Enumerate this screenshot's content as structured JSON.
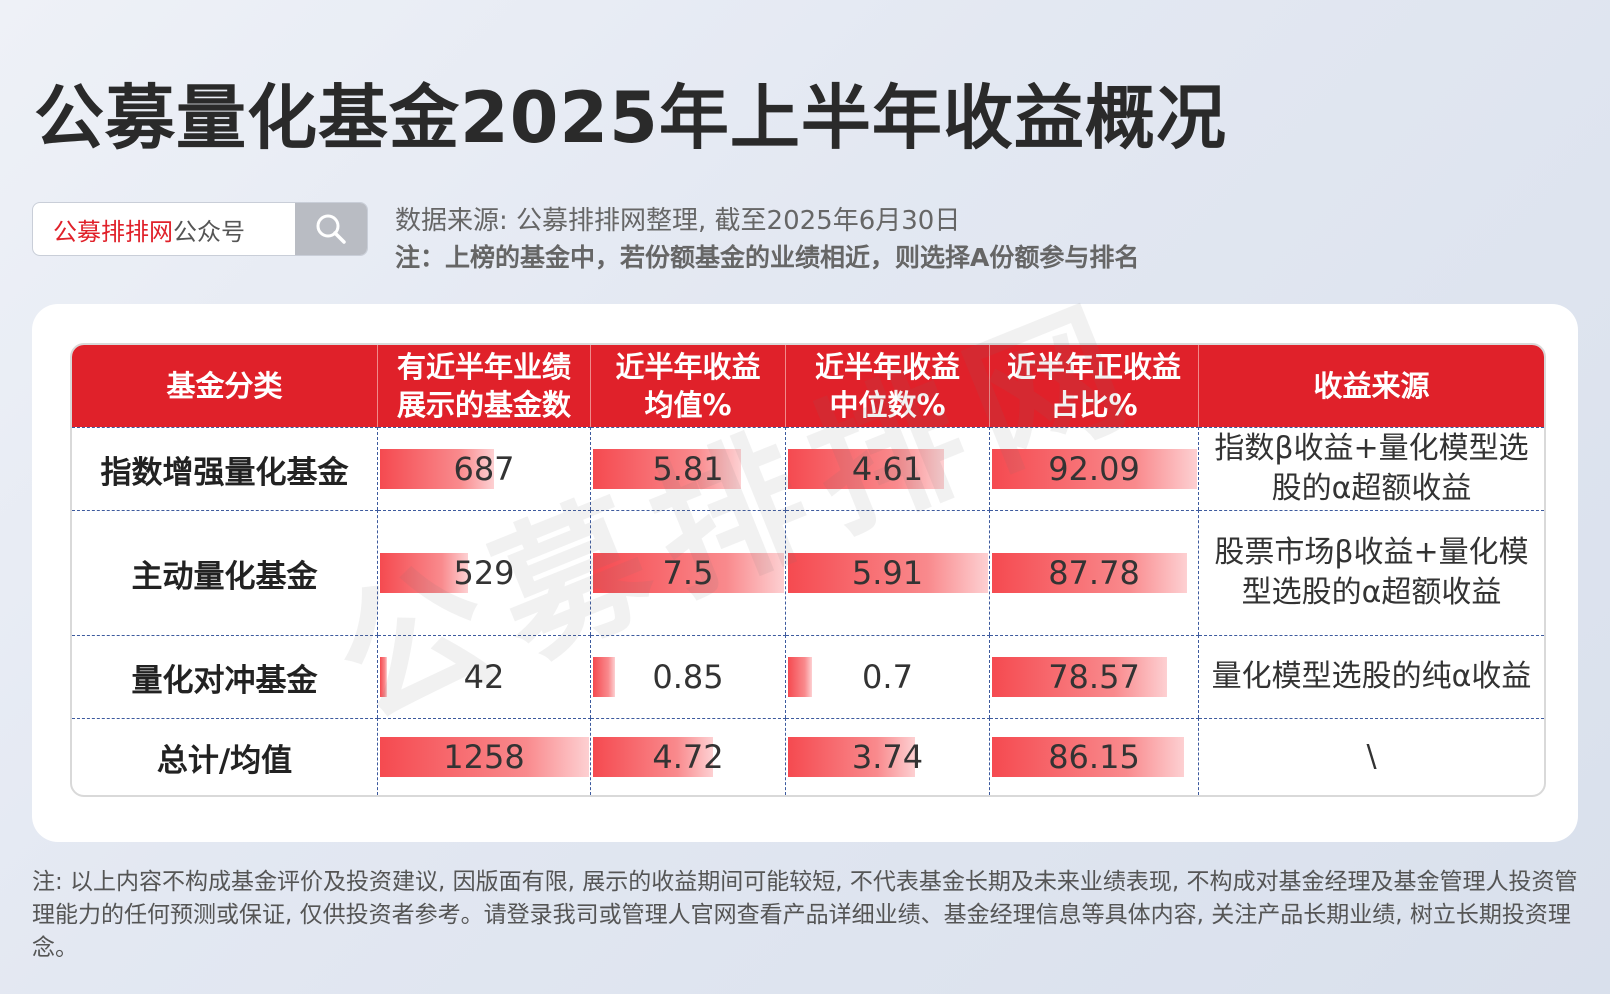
{
  "title": "公募量化基金2025年上半年收益概况",
  "search": {
    "brand_red": "公募排排网",
    "brand_grey": "公众号",
    "icon": "search-icon"
  },
  "source_line": "数据来源: 公募排排网整理, 截至2025年6月30日",
  "note_line": "注：上榜的基金中，若份额基金的业绩相近，则选择A份额参与排名",
  "watermark": "公募排排网",
  "colors": {
    "accent": "#e0212a",
    "bar": "#f54a50",
    "border": "#3d5a9e"
  },
  "chart_data": {
    "type": "table",
    "columns": [
      "基金分类",
      "有近半年业绩展示的基金数",
      "近半年收益均值%",
      "近半年收益中位数%",
      "近半年正收益占比%",
      "收益来源"
    ],
    "header_lines": [
      [
        "基金分类"
      ],
      [
        "有近半年业绩",
        "展示的基金数"
      ],
      [
        "近半年收益",
        "均值%"
      ],
      [
        "近半年收益",
        "中位数%"
      ],
      [
        "近半年正收益",
        "占比%"
      ],
      [
        "收益来源"
      ]
    ],
    "rows": [
      {
        "category": "指数增强量化基金",
        "count": 687,
        "mean": 5.81,
        "median": 4.61,
        "positive_pct": 92.09,
        "source": "指数β收益+量化模型选股的α超额收益"
      },
      {
        "category": "主动量化基金",
        "count": 529,
        "mean": 7.5,
        "median": 5.91,
        "positive_pct": 87.78,
        "source": "股票市场β收益+量化模型选股的α超额收益"
      },
      {
        "category": "量化对冲基金",
        "count": 42,
        "mean": 0.85,
        "median": 0.7,
        "positive_pct": 78.57,
        "source": "量化模型选股的纯α收益"
      },
      {
        "category": "总计/均值",
        "count": 1258,
        "mean": 4.72,
        "median": 3.74,
        "positive_pct": 86.15,
        "source": "\\"
      }
    ]
  },
  "footnote": "注: 以上内容不构成基金评价及投资建议, 因版面有限, 展示的收益期间可能较短, 不代表基金长期及未来业绩表现, 不构成对基金经理及基金管理人投资管理能力的任何预测或保证, 仅供投资者参考。请登录我司或管理人官网查看产品详细业绩、基金经理信息等具体内容, 关注产品长期业绩, 树立长期投资理念。"
}
